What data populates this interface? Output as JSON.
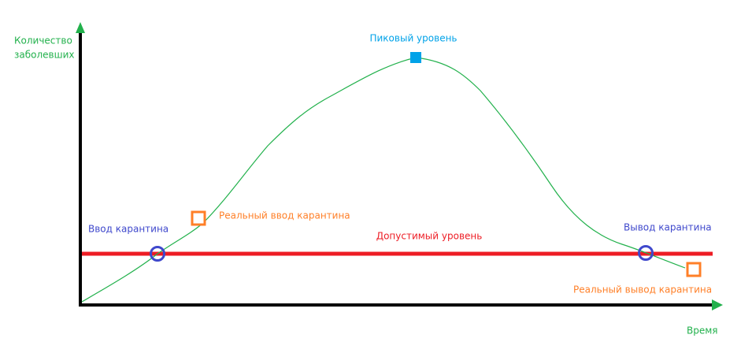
{
  "axes": {
    "y_label": [
      "Количество",
      "заболевших"
    ],
    "x_label": "Время"
  },
  "labels": {
    "peak": "Пиковый уровень",
    "quarantine_start": "Ввод карантина",
    "real_quarantine_start": "Реальный ввод карантина",
    "acceptable_level": "Допустимый уровень",
    "quarantine_end": "Вывод карантина",
    "real_quarantine_end": "Реальный вывод карантина"
  }
}
